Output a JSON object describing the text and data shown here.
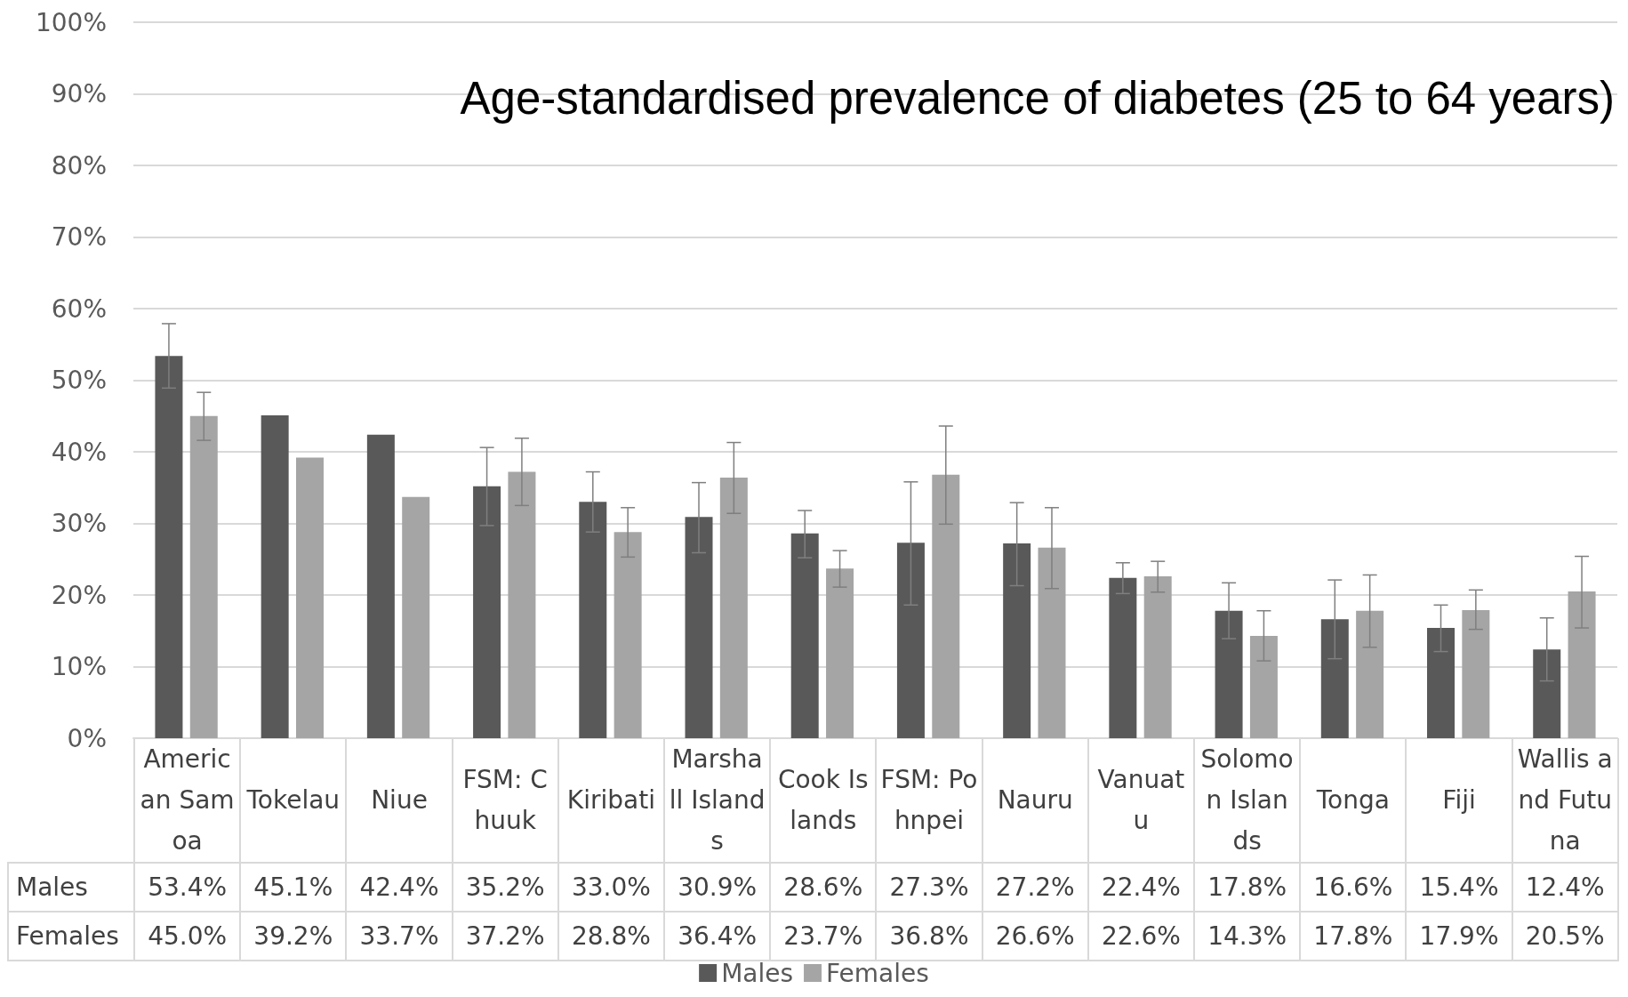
{
  "chart_data": {
    "type": "bar",
    "title": "Age-standardised prevalence of diabetes (25 to 64 years)",
    "categories": [
      "American Samoa",
      "Tokelau",
      "Niue",
      "FSM: Chuuk",
      "Kiribati",
      "Marshall Islands",
      "Cook Islands",
      "FSM: Pohnpei",
      "Nauru",
      "Vanuatu",
      "Solomon Islands",
      "Tonga",
      "Fiji",
      "Wallis and Futuna"
    ],
    "series": [
      {
        "name": "Males",
        "color": "#595959",
        "values": [
          53.4,
          45.1,
          42.4,
          35.2,
          33.0,
          30.9,
          28.6,
          27.3,
          27.2,
          22.4,
          17.8,
          16.6,
          15.4,
          12.4
        ],
        "value_labels": [
          "53.4%",
          "45.1%",
          "42.4%",
          "35.2%",
          "33.0%",
          "30.9%",
          "28.6%",
          "27.3%",
          "27.2%",
          "22.4%",
          "17.8%",
          "16.6%",
          "15.4%",
          "12.4%"
        ],
        "errors": [
          [
            48.9,
            57.9
          ],
          null,
          null,
          [
            29.7,
            40.6
          ],
          [
            28.8,
            37.2
          ],
          [
            25.9,
            35.7
          ],
          [
            25.2,
            31.8
          ],
          [
            18.6,
            35.8
          ],
          [
            21.3,
            32.9
          ],
          [
            20.2,
            24.5
          ],
          [
            13.9,
            21.7
          ],
          [
            11.1,
            22.1
          ],
          [
            12.1,
            18.6
          ],
          [
            8.0,
            16.8
          ]
        ]
      },
      {
        "name": "Females",
        "color": "#a5a5a5",
        "values": [
          45.0,
          39.2,
          33.7,
          37.2,
          28.8,
          36.4,
          23.7,
          36.8,
          26.6,
          22.6,
          14.3,
          17.8,
          17.9,
          20.5
        ],
        "value_labels": [
          "45.0%",
          "39.2%",
          "33.7%",
          "37.2%",
          "28.8%",
          "36.4%",
          "23.7%",
          "36.8%",
          "26.6%",
          "22.6%",
          "14.3%",
          "17.8%",
          "17.9%",
          "20.5%"
        ],
        "errors": [
          [
            41.6,
            48.3
          ],
          null,
          null,
          [
            32.5,
            41.9
          ],
          [
            25.3,
            32.2
          ],
          [
            31.4,
            41.3
          ],
          [
            21.1,
            26.2
          ],
          [
            29.9,
            43.6
          ],
          [
            20.9,
            32.2
          ],
          [
            20.4,
            24.7
          ],
          [
            10.8,
            17.8
          ],
          [
            12.7,
            22.8
          ],
          [
            15.2,
            20.7
          ],
          [
            15.4,
            25.4
          ]
        ]
      }
    ],
    "ylim": [
      0,
      100
    ],
    "yticks": [
      {
        "value": 0,
        "label": "0%"
      },
      {
        "value": 10,
        "label": "10%"
      },
      {
        "value": 20,
        "label": "20%"
      },
      {
        "value": 30,
        "label": "30%"
      },
      {
        "value": 40,
        "label": "40%"
      },
      {
        "value": 50,
        "label": "50%"
      },
      {
        "value": 60,
        "label": "60%"
      },
      {
        "value": 70,
        "label": "70%"
      },
      {
        "value": 80,
        "label": "80%"
      },
      {
        "value": 90,
        "label": "90%"
      },
      {
        "value": 100,
        "label": "100%"
      }
    ],
    "grid": "y",
    "legend": "bottom"
  }
}
